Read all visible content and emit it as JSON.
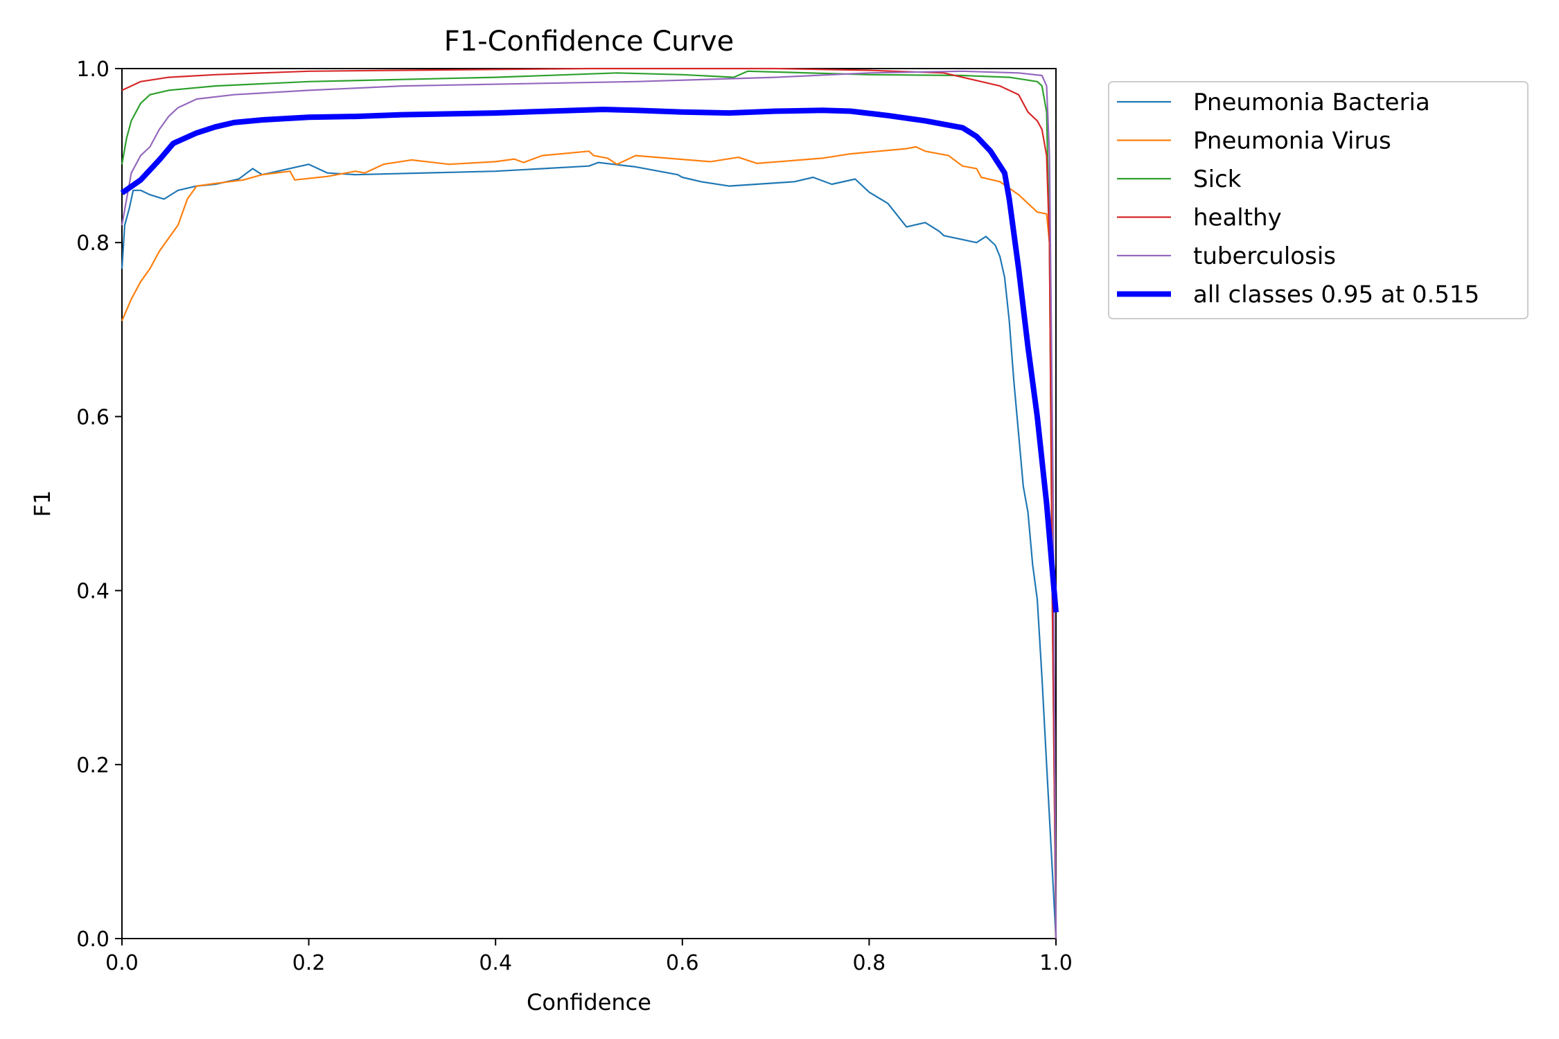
{
  "chart_data": {
    "type": "line",
    "title": "F1-Confidence Curve",
    "xlabel": "Confidence",
    "ylabel": "F1",
    "xlim": [
      0,
      1
    ],
    "ylim": [
      0,
      1
    ],
    "xticks": [
      "0.0",
      "0.2",
      "0.4",
      "0.6",
      "0.8",
      "1.0"
    ],
    "yticks": [
      "0.0",
      "0.2",
      "0.4",
      "0.6",
      "0.8",
      "1.0"
    ],
    "grid": false,
    "legend_position": "outside-top-right",
    "series": [
      {
        "name": "Pneumonia Bacteria",
        "color": "#1f77b4",
        "width": "thin",
        "points": [
          [
            0.0,
            0.77
          ],
          [
            0.003,
            0.82
          ],
          [
            0.008,
            0.84
          ],
          [
            0.012,
            0.86
          ],
          [
            0.02,
            0.86
          ],
          [
            0.03,
            0.855
          ],
          [
            0.045,
            0.85
          ],
          [
            0.06,
            0.86
          ],
          [
            0.08,
            0.865
          ],
          [
            0.1,
            0.867
          ],
          [
            0.125,
            0.873
          ],
          [
            0.14,
            0.885
          ],
          [
            0.15,
            0.878
          ],
          [
            0.2,
            0.89
          ],
          [
            0.22,
            0.88
          ],
          [
            0.25,
            0.878
          ],
          [
            0.4,
            0.882
          ],
          [
            0.5,
            0.888
          ],
          [
            0.51,
            0.892
          ],
          [
            0.55,
            0.887
          ],
          [
            0.595,
            0.878
          ],
          [
            0.6,
            0.875
          ],
          [
            0.62,
            0.87
          ],
          [
            0.65,
            0.865
          ],
          [
            0.72,
            0.87
          ],
          [
            0.74,
            0.875
          ],
          [
            0.76,
            0.867
          ],
          [
            0.785,
            0.873
          ],
          [
            0.8,
            0.858
          ],
          [
            0.82,
            0.845
          ],
          [
            0.84,
            0.818
          ],
          [
            0.86,
            0.823
          ],
          [
            0.875,
            0.813
          ],
          [
            0.88,
            0.808
          ],
          [
            0.915,
            0.8
          ],
          [
            0.925,
            0.807
          ],
          [
            0.935,
            0.797
          ],
          [
            0.94,
            0.784
          ],
          [
            0.945,
            0.76
          ],
          [
            0.95,
            0.71
          ],
          [
            0.955,
            0.64
          ],
          [
            0.96,
            0.58
          ],
          [
            0.965,
            0.52
          ],
          [
            0.97,
            0.49
          ],
          [
            0.975,
            0.43
          ],
          [
            0.98,
            0.39
          ],
          [
            0.985,
            0.3
          ],
          [
            0.99,
            0.2
          ],
          [
            0.995,
            0.1
          ],
          [
            1.0,
            0.0
          ]
        ]
      },
      {
        "name": "Pneumonia Virus",
        "color": "#ff7f0e",
        "width": "thin",
        "points": [
          [
            0.0,
            0.71
          ],
          [
            0.01,
            0.735
          ],
          [
            0.02,
            0.755
          ],
          [
            0.03,
            0.77
          ],
          [
            0.04,
            0.79
          ],
          [
            0.05,
            0.805
          ],
          [
            0.06,
            0.82
          ],
          [
            0.07,
            0.85
          ],
          [
            0.08,
            0.865
          ],
          [
            0.1,
            0.868
          ],
          [
            0.13,
            0.872
          ],
          [
            0.15,
            0.878
          ],
          [
            0.18,
            0.882
          ],
          [
            0.185,
            0.872
          ],
          [
            0.22,
            0.876
          ],
          [
            0.25,
            0.882
          ],
          [
            0.26,
            0.88
          ],
          [
            0.28,
            0.89
          ],
          [
            0.31,
            0.895
          ],
          [
            0.35,
            0.89
          ],
          [
            0.4,
            0.893
          ],
          [
            0.42,
            0.896
          ],
          [
            0.43,
            0.892
          ],
          [
            0.45,
            0.9
          ],
          [
            0.5,
            0.905
          ],
          [
            0.505,
            0.9
          ],
          [
            0.52,
            0.897
          ],
          [
            0.53,
            0.89
          ],
          [
            0.55,
            0.9
          ],
          [
            0.63,
            0.893
          ],
          [
            0.66,
            0.898
          ],
          [
            0.68,
            0.891
          ],
          [
            0.75,
            0.897
          ],
          [
            0.78,
            0.902
          ],
          [
            0.84,
            0.908
          ],
          [
            0.85,
            0.91
          ],
          [
            0.86,
            0.905
          ],
          [
            0.885,
            0.9
          ],
          [
            0.9,
            0.888
          ],
          [
            0.915,
            0.885
          ],
          [
            0.92,
            0.875
          ],
          [
            0.94,
            0.87
          ],
          [
            0.96,
            0.855
          ],
          [
            0.97,
            0.845
          ],
          [
            0.98,
            0.835
          ],
          [
            0.99,
            0.833
          ],
          [
            0.993,
            0.8
          ],
          [
            0.997,
            0.5
          ],
          [
            1.0,
            0.0
          ]
        ]
      },
      {
        "name": "Sick",
        "color": "#2ca02c",
        "width": "thin",
        "points": [
          [
            0.0,
            0.89
          ],
          [
            0.005,
            0.92
          ],
          [
            0.01,
            0.94
          ],
          [
            0.02,
            0.96
          ],
          [
            0.03,
            0.97
          ],
          [
            0.05,
            0.975
          ],
          [
            0.1,
            0.98
          ],
          [
            0.2,
            0.985
          ],
          [
            0.4,
            0.99
          ],
          [
            0.53,
            0.995
          ],
          [
            0.6,
            0.993
          ],
          [
            0.655,
            0.99
          ],
          [
            0.67,
            0.997
          ],
          [
            0.8,
            0.993
          ],
          [
            0.9,
            0.992
          ],
          [
            0.95,
            0.99
          ],
          [
            0.98,
            0.985
          ],
          [
            0.985,
            0.98
          ],
          [
            0.99,
            0.95
          ],
          [
            0.993,
            0.8
          ],
          [
            0.996,
            0.4
          ],
          [
            1.0,
            0.0
          ]
        ]
      },
      {
        "name": "healthy",
        "color": "#d62728",
        "width": "thin",
        "points": [
          [
            0.0,
            0.975
          ],
          [
            0.01,
            0.98
          ],
          [
            0.02,
            0.985
          ],
          [
            0.05,
            0.99
          ],
          [
            0.1,
            0.993
          ],
          [
            0.2,
            0.997
          ],
          [
            0.3,
            0.998
          ],
          [
            0.5,
            1.0
          ],
          [
            0.7,
            1.0
          ],
          [
            0.8,
            0.998
          ],
          [
            0.88,
            0.995
          ],
          [
            0.9,
            0.99
          ],
          [
            0.94,
            0.98
          ],
          [
            0.96,
            0.97
          ],
          [
            0.97,
            0.95
          ],
          [
            0.98,
            0.94
          ],
          [
            0.985,
            0.93
          ],
          [
            0.99,
            0.9
          ],
          [
            0.993,
            0.8
          ],
          [
            0.996,
            0.4
          ],
          [
            1.0,
            0.0
          ]
        ]
      },
      {
        "name": "tuberculosis",
        "color": "#9467bd",
        "width": "thin",
        "points": [
          [
            0.0,
            0.82
          ],
          [
            0.005,
            0.85
          ],
          [
            0.01,
            0.88
          ],
          [
            0.02,
            0.9
          ],
          [
            0.03,
            0.91
          ],
          [
            0.04,
            0.93
          ],
          [
            0.05,
            0.945
          ],
          [
            0.06,
            0.955
          ],
          [
            0.08,
            0.965
          ],
          [
            0.12,
            0.97
          ],
          [
            0.2,
            0.975
          ],
          [
            0.3,
            0.98
          ],
          [
            0.55,
            0.985
          ],
          [
            0.7,
            0.99
          ],
          [
            0.8,
            0.995
          ],
          [
            0.9,
            0.997
          ],
          [
            0.96,
            0.995
          ],
          [
            0.985,
            0.992
          ],
          [
            0.99,
            0.98
          ],
          [
            0.993,
            0.9
          ],
          [
            0.997,
            0.5
          ],
          [
            1.0,
            0.0
          ]
        ]
      },
      {
        "name": "all classes 0.95 at 0.515",
        "color": "#0000ff",
        "width": "thick",
        "points": [
          [
            0.0,
            0.857
          ],
          [
            0.02,
            0.872
          ],
          [
            0.04,
            0.895
          ],
          [
            0.055,
            0.914
          ],
          [
            0.08,
            0.926
          ],
          [
            0.1,
            0.933
          ],
          [
            0.12,
            0.938
          ],
          [
            0.15,
            0.941
          ],
          [
            0.2,
            0.944
          ],
          [
            0.25,
            0.945
          ],
          [
            0.3,
            0.947
          ],
          [
            0.4,
            0.949
          ],
          [
            0.515,
            0.953
          ],
          [
            0.55,
            0.952
          ],
          [
            0.6,
            0.95
          ],
          [
            0.65,
            0.949
          ],
          [
            0.7,
            0.951
          ],
          [
            0.75,
            0.952
          ],
          [
            0.78,
            0.951
          ],
          [
            0.82,
            0.946
          ],
          [
            0.86,
            0.94
          ],
          [
            0.9,
            0.932
          ],
          [
            0.915,
            0.922
          ],
          [
            0.93,
            0.905
          ],
          [
            0.945,
            0.88
          ],
          [
            0.95,
            0.85
          ],
          [
            0.96,
            0.77
          ],
          [
            0.97,
            0.68
          ],
          [
            0.98,
            0.6
          ],
          [
            0.99,
            0.5
          ],
          [
            1.0,
            0.375
          ]
        ]
      }
    ]
  }
}
